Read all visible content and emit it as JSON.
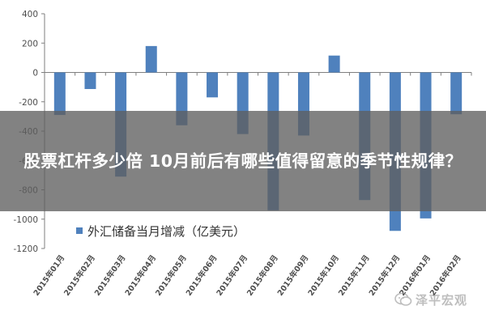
{
  "overlay": {
    "title": "股票杠杆多少倍 10月前后有哪些值得留意的季节性规律？"
  },
  "watermark": {
    "text": "泽平宏观"
  },
  "chart_data": {
    "type": "bar",
    "categories": [
      "2015年01月",
      "2015年02月",
      "2015年03月",
      "2015年04月",
      "2015年05月",
      "2015年06月",
      "2015年07月",
      "2015年08月",
      "2015年09月",
      "2015年10月",
      "2015年11月",
      "2015年12月",
      "2016年01月",
      "2016年02月"
    ],
    "series": [
      {
        "name": "外汇储备当月增减（亿美元）",
        "values": [
          -290,
          -113,
          -710,
          180,
          -360,
          -170,
          -420,
          -940,
          -430,
          115,
          -870,
          -1080,
          -995,
          -285
        ]
      }
    ],
    "ylim": [
      -1200,
      400
    ],
    "yticks": [
      400,
      200,
      0,
      -200,
      -400,
      -600,
      -800,
      -1000,
      -1200
    ],
    "title": "",
    "xlabel": "",
    "ylabel": "",
    "legend_position": "bottom-left",
    "grid": false,
    "colors": {
      "bar": "#4f81bd",
      "axis": "#7f7f7f",
      "tick_text": "#4d4d4d"
    }
  }
}
